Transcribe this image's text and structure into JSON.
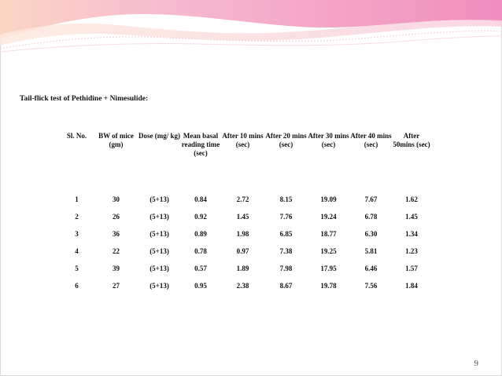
{
  "slide": {
    "title": "Tail-flick test of Pethidine + Nimesulide:",
    "page_number": "9"
  },
  "table": {
    "headers": [
      "Sl. No.",
      "BW of mice (gm)",
      "Dose (mg/ kg)",
      "Mean basal reading time (sec)",
      "After 10 mins (sec)",
      "After 20 mins (sec)",
      "After 30 mins (sec)",
      "After 40 mins (sec)",
      "After 50mins (sec)"
    ],
    "rows": [
      [
        "1",
        "30",
        "(5+13)",
        "0.84",
        "2.72",
        "8.15",
        "19.09",
        "7.67",
        "1.62"
      ],
      [
        "2",
        "26",
        "(5+13)",
        "0.92",
        "1.45",
        "7.76",
        "19.24",
        "6.78",
        "1.45"
      ],
      [
        "3",
        "36",
        "(5+13)",
        "0.89",
        "1.98",
        "6.85",
        "18.77",
        "6.30",
        "1.34"
      ],
      [
        "4",
        "22",
        "(5+13)",
        "0.78",
        "0.97",
        "7.38",
        "19.25",
        "5.81",
        "1.23"
      ],
      [
        "5",
        "39",
        "(5+13)",
        "0.57",
        "1.89",
        "7.98",
        "17.95",
        "6.46",
        "1.57"
      ],
      [
        "6",
        "27",
        "(5+13)",
        "0.95",
        "2.38",
        "8.67",
        "19.78",
        "7.56",
        "1.84"
      ]
    ]
  },
  "theme": {
    "banner_pink": "#f3a6c8",
    "banner_peach": "#fbd9bf",
    "wave_line": "#f0d9e2"
  }
}
